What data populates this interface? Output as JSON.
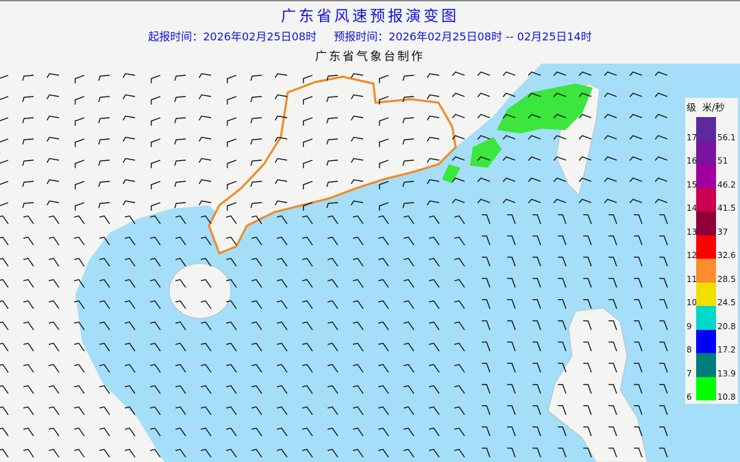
{
  "header": {
    "title": "广东省风速预报演变图",
    "issue_time": "起报时间：2026年02月25日08时",
    "forecast_time": "预报时间：2026年02月25日08时 -- 02月25日14时",
    "agency": "广东省气象台制作"
  },
  "legend": {
    "level_header": "级",
    "unit_header": "米/秒",
    "items": [
      {
        "level": "17",
        "speed": "56.1",
        "color": "#5b2a9e"
      },
      {
        "level": "16",
        "speed": "51",
        "color": "#7a14a0"
      },
      {
        "level": "15",
        "speed": "46.2",
        "color": "#a0009e"
      },
      {
        "level": "14",
        "speed": "41.5",
        "color": "#cc0050"
      },
      {
        "level": "13",
        "speed": "37",
        "color": "#900038"
      },
      {
        "level": "12",
        "speed": "32.6",
        "color": "#ff0000"
      },
      {
        "level": "11",
        "speed": "28.5",
        "color": "#fd8c2c"
      },
      {
        "level": "10",
        "speed": "24.5",
        "color": "#f0e000"
      },
      {
        "level": "9",
        "speed": "20.8",
        "color": "#00d8c8"
      },
      {
        "level": "8",
        "speed": "17.2",
        "color": "#0000ff"
      },
      {
        "level": "7",
        "speed": "13.9",
        "color": "#007c7c"
      },
      {
        "level": "6",
        "speed": "10.8",
        "color": "#00ff00"
      }
    ]
  },
  "colors": {
    "sea": "#a4def8",
    "land": "#f4f4f2",
    "province_outline": "#f08a24",
    "title": "#1010e0"
  }
}
